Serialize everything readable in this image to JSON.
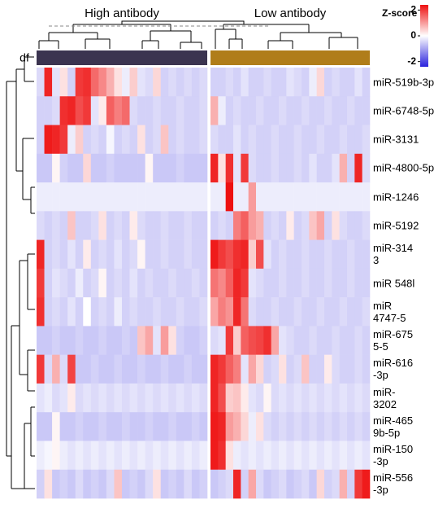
{
  "chart_data": {
    "type": "heatmap",
    "groups": [
      {
        "name": "High antibody",
        "color": "#3b3450",
        "size": 22
      },
      {
        "name": "Low antibody",
        "color": "#b07d1a",
        "size": 21
      }
    ],
    "annotation_label": "df",
    "colorbar_title": "Z-score",
    "zlim": [
      -2.4,
      2.4
    ],
    "zticks": [
      2,
      0,
      -2
    ],
    "colors": {
      "low": "#2a22dd",
      "mid": "#ffffff",
      "high": "#ee1111"
    },
    "rows": [
      "miR-519b-3p",
      "miR-6748-5p",
      "miR-3131",
      "miR-4800-5p",
      "miR-1246",
      "miR-5192",
      "miR-314\n3",
      "miR 548l",
      "miR\n4747-5",
      "miR-675\n5-5",
      "miR-616\n-3p",
      "miR-\n3202",
      "miR-465\n9b-5p",
      "miR-150\n-3p",
      "miR-556\n-3p"
    ],
    "values": [
      [
        -0.4,
        2.2,
        -0.3,
        0.3,
        -0.5,
        2.0,
        2.1,
        1.5,
        1.2,
        0.8,
        0.3,
        -0.2,
        0.5,
        -0.3,
        -0.4,
        0.4,
        -0.5,
        -0.4,
        -0.5,
        -0.4,
        -0.5,
        -0.4,
        -0.5,
        -0.5,
        -0.4,
        -0.5,
        -0.3,
        -0.5,
        -0.5,
        -0.4,
        -0.5,
        -0.5,
        -0.3,
        -0.4,
        -0.5,
        -0.2,
        0.4,
        -0.5,
        -0.4,
        -0.5,
        -0.5,
        -0.3,
        -0.5
      ],
      [
        -0.5,
        -0.5,
        -0.4,
        2.1,
        2.2,
        1.8,
        2.0,
        -0.3,
        0.2,
        1.6,
        1.3,
        1.5,
        -0.4,
        -0.5,
        -0.5,
        -0.4,
        -0.5,
        -0.5,
        -0.4,
        -0.5,
        -0.5,
        -0.4,
        0.8,
        -0.2,
        -0.5,
        -0.4,
        -0.5,
        -0.5,
        -0.4,
        -0.5,
        -0.5,
        -0.4,
        -0.5,
        -0.5,
        -0.4,
        -0.5,
        -0.5,
        -0.4,
        -0.5,
        -0.5,
        -0.4,
        -0.5,
        -0.5
      ],
      [
        -0.5,
        2.3,
        2.2,
        2.0,
        -0.2,
        0.5,
        -0.5,
        -0.4,
        -0.5,
        -0.1,
        -0.5,
        -0.4,
        -0.5,
        0.3,
        -0.5,
        -0.4,
        0.6,
        -0.5,
        -0.4,
        -0.5,
        -0.5,
        -0.4,
        -0.4,
        -0.5,
        -0.5,
        -0.3,
        -0.5,
        -0.4,
        -0.5,
        -0.5,
        -0.4,
        -0.5,
        -0.5,
        -0.4,
        -0.5,
        -0.5,
        -0.4,
        -0.5,
        -0.5,
        -0.4,
        -0.5,
        -0.5,
        -0.4
      ],
      [
        -0.6,
        -0.6,
        0.1,
        -0.5,
        -0.6,
        -0.6,
        0.4,
        -0.6,
        -0.6,
        -0.5,
        -0.6,
        -0.6,
        -0.6,
        -0.6,
        0.1,
        -0.6,
        -0.6,
        -0.6,
        -0.5,
        -0.6,
        -0.6,
        -0.6,
        2.2,
        0.3,
        2.1,
        -0.3,
        2.0,
        -0.4,
        -0.5,
        -0.5,
        -0.4,
        -0.5,
        -0.5,
        -0.4,
        -0.5,
        -0.3,
        -0.5,
        -0.5,
        -0.3,
        0.8,
        -0.5,
        2.2,
        -0.4
      ],
      [
        -0.2,
        -0.2,
        -0.2,
        -0.2,
        -0.2,
        -0.2,
        -0.2,
        -0.2,
        -0.2,
        -0.2,
        -0.2,
        -0.2,
        -0.2,
        -0.2,
        -0.2,
        -0.2,
        -0.2,
        -0.2,
        -0.2,
        -0.2,
        -0.2,
        -0.2,
        -0.2,
        -0.2,
        2.4,
        -0.2,
        -0.2,
        1.0,
        -0.2,
        -0.2,
        -0.2,
        -0.2,
        -0.2,
        -0.2,
        -0.2,
        -0.2,
        -0.2,
        -0.2,
        -0.2,
        -0.2,
        -0.2,
        -0.2,
        -0.2
      ],
      [
        -0.4,
        -0.5,
        -0.4,
        -0.5,
        0.6,
        -0.5,
        -0.5,
        -0.4,
        0.3,
        -0.5,
        -0.4,
        -0.5,
        0.2,
        -0.4,
        -0.5,
        -0.5,
        -0.4,
        -0.5,
        -0.5,
        -0.4,
        -0.5,
        -0.5,
        -0.5,
        -0.4,
        -0.5,
        1.3,
        1.6,
        1.0,
        0.8,
        -0.5,
        -0.4,
        -0.5,
        0.2,
        -0.5,
        -0.4,
        0.6,
        0.9,
        -0.5,
        0.3,
        -0.4,
        -0.5,
        -0.5,
        -0.4
      ],
      [
        2.2,
        -0.5,
        -0.4,
        -0.5,
        -0.3,
        -0.5,
        0.2,
        -0.5,
        -0.4,
        -0.5,
        -0.3,
        -0.5,
        -0.4,
        0.1,
        -0.5,
        -0.5,
        -0.4,
        -0.5,
        -0.5,
        -0.4,
        -0.5,
        -0.5,
        2.3,
        2.0,
        1.8,
        2.1,
        2.2,
        0.5,
        1.8,
        -0.3,
        -0.5,
        -0.4,
        -0.5,
        -0.5,
        -0.4,
        -0.5,
        -0.5,
        -0.4,
        -0.5,
        -0.5,
        -0.4,
        -0.5,
        -0.5
      ],
      [
        2.0,
        -0.5,
        -0.3,
        -0.4,
        -0.5,
        -0.2,
        -0.5,
        -0.4,
        0.1,
        -0.5,
        -0.4,
        -0.5,
        -0.3,
        -0.5,
        -0.4,
        -0.5,
        -0.5,
        -0.4,
        -0.5,
        -0.5,
        -0.4,
        -0.5,
        1.4,
        1.2,
        1.6,
        2.2,
        2.0,
        -0.3,
        -0.4,
        -0.5,
        -0.5,
        -0.4,
        -0.5,
        -0.5,
        -0.4,
        -0.5,
        -0.5,
        -0.4,
        -0.5,
        -0.5,
        -0.4,
        -0.5,
        -0.5
      ],
      [
        2.1,
        -0.5,
        -0.4,
        -0.5,
        -0.3,
        -0.5,
        0.0,
        -0.5,
        -0.4,
        -0.5,
        -0.2,
        -0.5,
        -0.4,
        -0.5,
        -0.5,
        -0.4,
        -0.5,
        -0.5,
        -0.4,
        -0.5,
        -0.5,
        -0.4,
        0.9,
        1.3,
        1.1,
        2.2,
        1.4,
        -0.4,
        -0.5,
        -0.5,
        -0.4,
        -0.5,
        -0.5,
        -0.4,
        -0.5,
        -0.5,
        -0.4,
        -0.5,
        -0.5,
        -0.4,
        -0.5,
        -0.5,
        -0.4
      ],
      [
        -0.6,
        -0.6,
        -0.5,
        -0.6,
        -0.6,
        -0.5,
        -0.6,
        -0.6,
        -0.5,
        -0.6,
        -0.6,
        -0.5,
        -0.6,
        0.6,
        0.9,
        -0.3,
        1.0,
        0.3,
        -0.5,
        -0.6,
        -0.6,
        -0.5,
        -0.4,
        -0.3,
        2.0,
        0.5,
        1.6,
        1.8,
        1.9,
        2.1,
        0.9,
        -0.3,
        -0.4,
        -0.5,
        -0.5,
        -0.4,
        -0.5,
        -0.5,
        -0.4,
        -0.5,
        -0.5,
        -0.4,
        -0.5
      ],
      [
        2.0,
        -0.4,
        0.8,
        -0.4,
        1.9,
        -0.6,
        -0.6,
        -0.5,
        -0.6,
        -0.6,
        -0.5,
        -0.6,
        -0.6,
        -0.5,
        -0.6,
        -0.6,
        -0.5,
        -0.6,
        -0.6,
        -0.5,
        -0.6,
        -0.6,
        2.2,
        2.0,
        1.6,
        1.3,
        -0.3,
        0.9,
        0.4,
        -0.5,
        -0.4,
        0.3,
        -0.5,
        -0.4,
        0.6,
        -0.5,
        -0.5,
        0.2,
        -0.4,
        -0.5,
        -0.5,
        -0.4,
        -0.5
      ],
      [
        -0.3,
        -0.2,
        -0.4,
        -0.3,
        0.2,
        -0.4,
        -0.3,
        -0.4,
        -0.3,
        -0.4,
        -0.3,
        -0.4,
        -0.3,
        -0.4,
        -0.3,
        -0.4,
        -0.3,
        -0.4,
        -0.3,
        -0.4,
        -0.3,
        -0.4,
        2.2,
        1.8,
        0.5,
        0.6,
        0.2,
        -0.3,
        -0.4,
        0.1,
        -0.4,
        -0.3,
        -0.4,
        -0.3,
        -0.4,
        -0.3,
        -0.4,
        -0.3,
        -0.4,
        -0.3,
        -0.4,
        -0.3,
        -0.4
      ],
      [
        -0.6,
        -0.6,
        0.1,
        -0.6,
        -0.6,
        -0.5,
        -0.6,
        -0.6,
        -0.5,
        -0.6,
        -0.6,
        -0.5,
        -0.6,
        -0.6,
        -0.5,
        -0.6,
        -0.6,
        -0.5,
        -0.6,
        -0.6,
        -0.5,
        -0.6,
        2.3,
        2.2,
        1.0,
        0.8,
        0.4,
        -0.2,
        0.3,
        -0.4,
        -0.5,
        -0.4,
        -0.5,
        -0.4,
        -0.5,
        -0.4,
        -0.5,
        -0.4,
        -0.5,
        -0.4,
        -0.5,
        -0.4,
        -0.5
      ],
      [
        -0.2,
        -0.1,
        0.1,
        -0.2,
        -0.3,
        -0.2,
        -0.3,
        -0.2,
        -0.3,
        -0.2,
        -0.3,
        -0.2,
        -0.3,
        -0.2,
        -0.3,
        -0.2,
        -0.3,
        -0.2,
        -0.3,
        -0.2,
        -0.3,
        -0.2,
        2.3,
        2.1,
        0.3,
        -0.2,
        -0.3,
        -0.2,
        -0.3,
        -0.2,
        -0.3,
        -0.2,
        -0.3,
        -0.2,
        -0.3,
        -0.2,
        -0.3,
        -0.2,
        -0.3,
        -0.2,
        -0.3,
        -0.2,
        -0.3
      ],
      [
        -0.5,
        0.3,
        -0.6,
        -0.5,
        -0.6,
        -0.4,
        -0.6,
        -0.5,
        -0.6,
        -0.4,
        0.6,
        -0.6,
        -0.5,
        -0.6,
        -0.4,
        0.3,
        -0.6,
        -0.5,
        -0.6,
        -0.4,
        -0.6,
        -0.5,
        -0.6,
        -0.5,
        -0.4,
        2.2,
        -0.5,
        0.9,
        -0.4,
        -0.6,
        -0.5,
        -0.4,
        -0.6,
        -0.5,
        -0.4,
        -0.6,
        0.4,
        -0.5,
        -0.4,
        0.8,
        -0.5,
        2.0,
        2.3
      ]
    ]
  }
}
